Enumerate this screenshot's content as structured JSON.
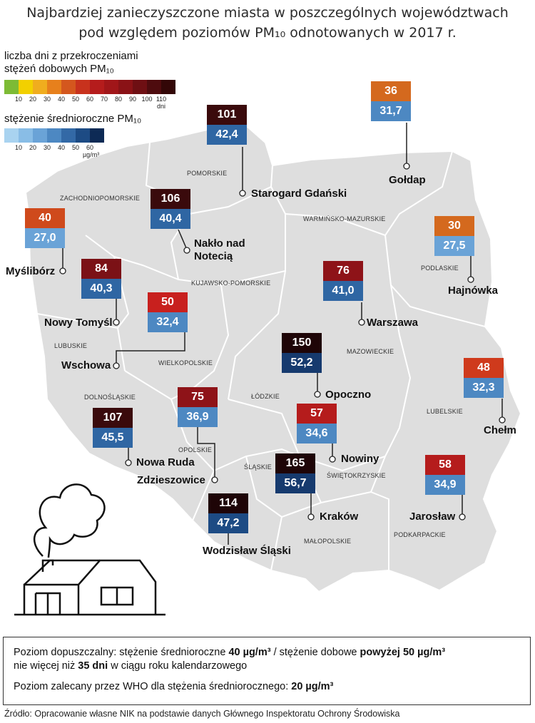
{
  "title": {
    "line1": "Najbardziej zanieczyszczone miasta w poszczególnych województwach",
    "line2": "pod względem poziomów PM₁₀ odnotowanych w 2017 r."
  },
  "legend_days": {
    "title_line1": "liczba dni z przekroczeniami",
    "title_line2": "stężeń dobowych PM₁₀",
    "colors": [
      "#7dbb35",
      "#f2d000",
      "#f0ad1e",
      "#e7801c",
      "#d4571e",
      "#c8321d",
      "#b51c1c",
      "#a11619",
      "#8a1216",
      "#6e0f13",
      "#4e0b0e",
      "#330707"
    ],
    "ticks": [
      "10",
      "20",
      "30",
      "40",
      "50",
      "60",
      "70",
      "80",
      "90",
      "100",
      "110 dni"
    ]
  },
  "legend_mean": {
    "title": "stężenie średnioroczne PM₁₀",
    "colors": [
      "#a9d3f0",
      "#89bde6",
      "#6aa3d7",
      "#4d88c2",
      "#3369a6",
      "#1d4b84",
      "#0d2a55"
    ],
    "ticks": [
      "10",
      "20",
      "30",
      "40",
      "50",
      "60 µg/m³"
    ]
  },
  "regions": [
    "POMORSKIE",
    "ZACHODNIOPOMORSKIE",
    "WARMIŃSKO-MAZURSKIE",
    "PODLASKIE",
    "KUJAWSKO-POMORSKIE",
    "LUBUSKIE",
    "MAZOWIECKIE",
    "WIELKOPOLSKIE",
    "DOLNOŚLĄSKIE",
    "ŁÓDZKIE",
    "LUBELSKIE",
    "OPOLSKIE",
    "ŚLĄSKIE",
    "ŚWIĘTOKRZYSKIE",
    "MAŁOPOLSKIE",
    "PODKARPACKIE"
  ],
  "cities": [
    {
      "name": "Starogard Gdański",
      "days": "101",
      "days_color": "#3a0a0c",
      "mean": "42,4",
      "mean_color": "#2f66a3"
    },
    {
      "name": "Gołdap",
      "days": "36",
      "days_color": "#d4691e",
      "mean": "31,7",
      "mean_color": "#4d88c2"
    },
    {
      "name": "Nakło nad Notecią",
      "days": "106",
      "days_color": "#3a0a0c",
      "mean": "40,4",
      "mean_color": "#2f66a3"
    },
    {
      "name": "Myślibórz",
      "days": "40",
      "days_color": "#cf4a1c",
      "mean": "27,0",
      "mean_color": "#6aa3d7"
    },
    {
      "name": "Hajnówka",
      "days": "30",
      "days_color": "#d4691e",
      "mean": "27,5",
      "mean_color": "#6aa3d7"
    },
    {
      "name": "Nowy Tomyśl",
      "days": "84",
      "days_color": "#7b1116",
      "mean": "40,3",
      "mean_color": "#2f66a3"
    },
    {
      "name": "Warszawa",
      "days": "76",
      "days_color": "#8e1318",
      "mean": "41,0",
      "mean_color": "#2f66a3"
    },
    {
      "name": "Wschowa",
      "days": "50",
      "days_color": "#c8201e",
      "mean": "32,4",
      "mean_color": "#4d88c2"
    },
    {
      "name": "Opoczno",
      "days": "150",
      "days_color": "#1e0507",
      "mean": "52,2",
      "mean_color": "#163a6e"
    },
    {
      "name": "Chełm",
      "days": "48",
      "days_color": "#cf3a1c",
      "mean": "32,3",
      "mean_color": "#4d88c2"
    },
    {
      "name": "Zdzieszowice",
      "days": "75",
      "days_color": "#8e1318",
      "mean": "36,9",
      "mean_color": "#4d88c2"
    },
    {
      "name": "Nowa Ruda",
      "days": "107",
      "days_color": "#3a0a0c",
      "mean": "45,5",
      "mean_color": "#2f66a3"
    },
    {
      "name": "Nowiny",
      "days": "57",
      "days_color": "#b51c1c",
      "mean": "34,6",
      "mean_color": "#4d88c2"
    },
    {
      "name": "Kraków",
      "days": "165",
      "days_color": "#1e0507",
      "mean": "56,7",
      "mean_color": "#163a6e"
    },
    {
      "name": "Jarosław",
      "days": "58",
      "days_color": "#b51c1c",
      "mean": "34,9",
      "mean_color": "#4d88c2"
    },
    {
      "name": "Wodzisław Śląski",
      "days": "114",
      "days_color": "#1e0507",
      "mean": "47,2",
      "mean_color": "#1d4b84"
    }
  ],
  "note": {
    "line1_a": "Poziom dopuszczalny: stężenie średnioroczne ",
    "line1_b": "40 µg/m³",
    "line1_c": " / stężenie dobowe ",
    "line1_d": "powyżej 50 µg/m³",
    "line2_a": "nie więcej niż ",
    "line2_b": "35 dni",
    "line2_c": " w ciągu roku kalendarzowego",
    "line3_a": "Poziom zalecany przez WHO dla stężenia średniorocznego: ",
    "line3_b": "20 µg/m³"
  },
  "source": "Źródło: Opracowanie własne NIK na podstawie danych Głównego Inspektoratu Ochrony Środowiska"
}
